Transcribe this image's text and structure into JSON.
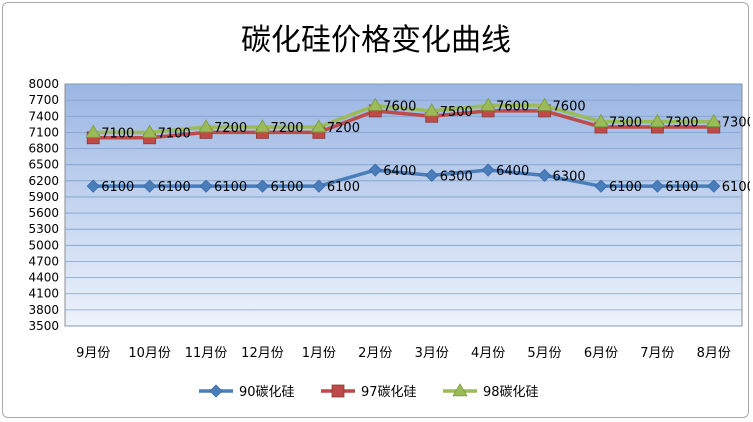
{
  "chart_data": {
    "type": "line",
    "title": "碳化硅价格变化曲线",
    "categories": [
      "9月份",
      "10月份",
      "11月份",
      "12月份",
      "1月份",
      "2月份",
      "3月份",
      "4月份",
      "5月份",
      "6月份",
      "7月份",
      "8月份"
    ],
    "series": [
      {
        "name": "90碳化硅",
        "color": "#4a7ebb",
        "marker": "diamond",
        "values": [
          6100,
          6100,
          6100,
          6100,
          6100,
          6400,
          6300,
          6400,
          6300,
          6100,
          6100,
          6100
        ]
      },
      {
        "name": "97碳化硅",
        "color": "#be4b48",
        "marker": "square",
        "values": [
          7000,
          7000,
          7100,
          7100,
          7100,
          7500,
          7400,
          7500,
          7500,
          7200,
          7200,
          7200
        ]
      },
      {
        "name": "98碳化硅",
        "color": "#9bbb59",
        "marker": "triangle",
        "values": [
          7100,
          7100,
          7200,
          7200,
          7200,
          7600,
          7500,
          7600,
          7600,
          7300,
          7300,
          7300
        ]
      }
    ],
    "data_labels": {
      "90碳化硅": [
        "6100",
        "6100",
        "6100",
        "6100",
        "6100",
        "6400",
        "6300",
        "6400",
        "6300",
        "6100",
        "6100",
        "6100"
      ],
      "98碳化硅": [
        "7100",
        "7100",
        "7200",
        "7200",
        "7200",
        "7600",
        "7500",
        "7600",
        "7600",
        "7300",
        "7300",
        "7300"
      ]
    },
    "yticks": [
      3500,
      3800,
      4100,
      4400,
      4700,
      5000,
      5300,
      5600,
      5900,
      6200,
      6500,
      6800,
      7100,
      7400,
      7700,
      8000
    ],
    "ylim": [
      3500,
      8000
    ],
    "grid": true,
    "legend_position": "bottom"
  }
}
